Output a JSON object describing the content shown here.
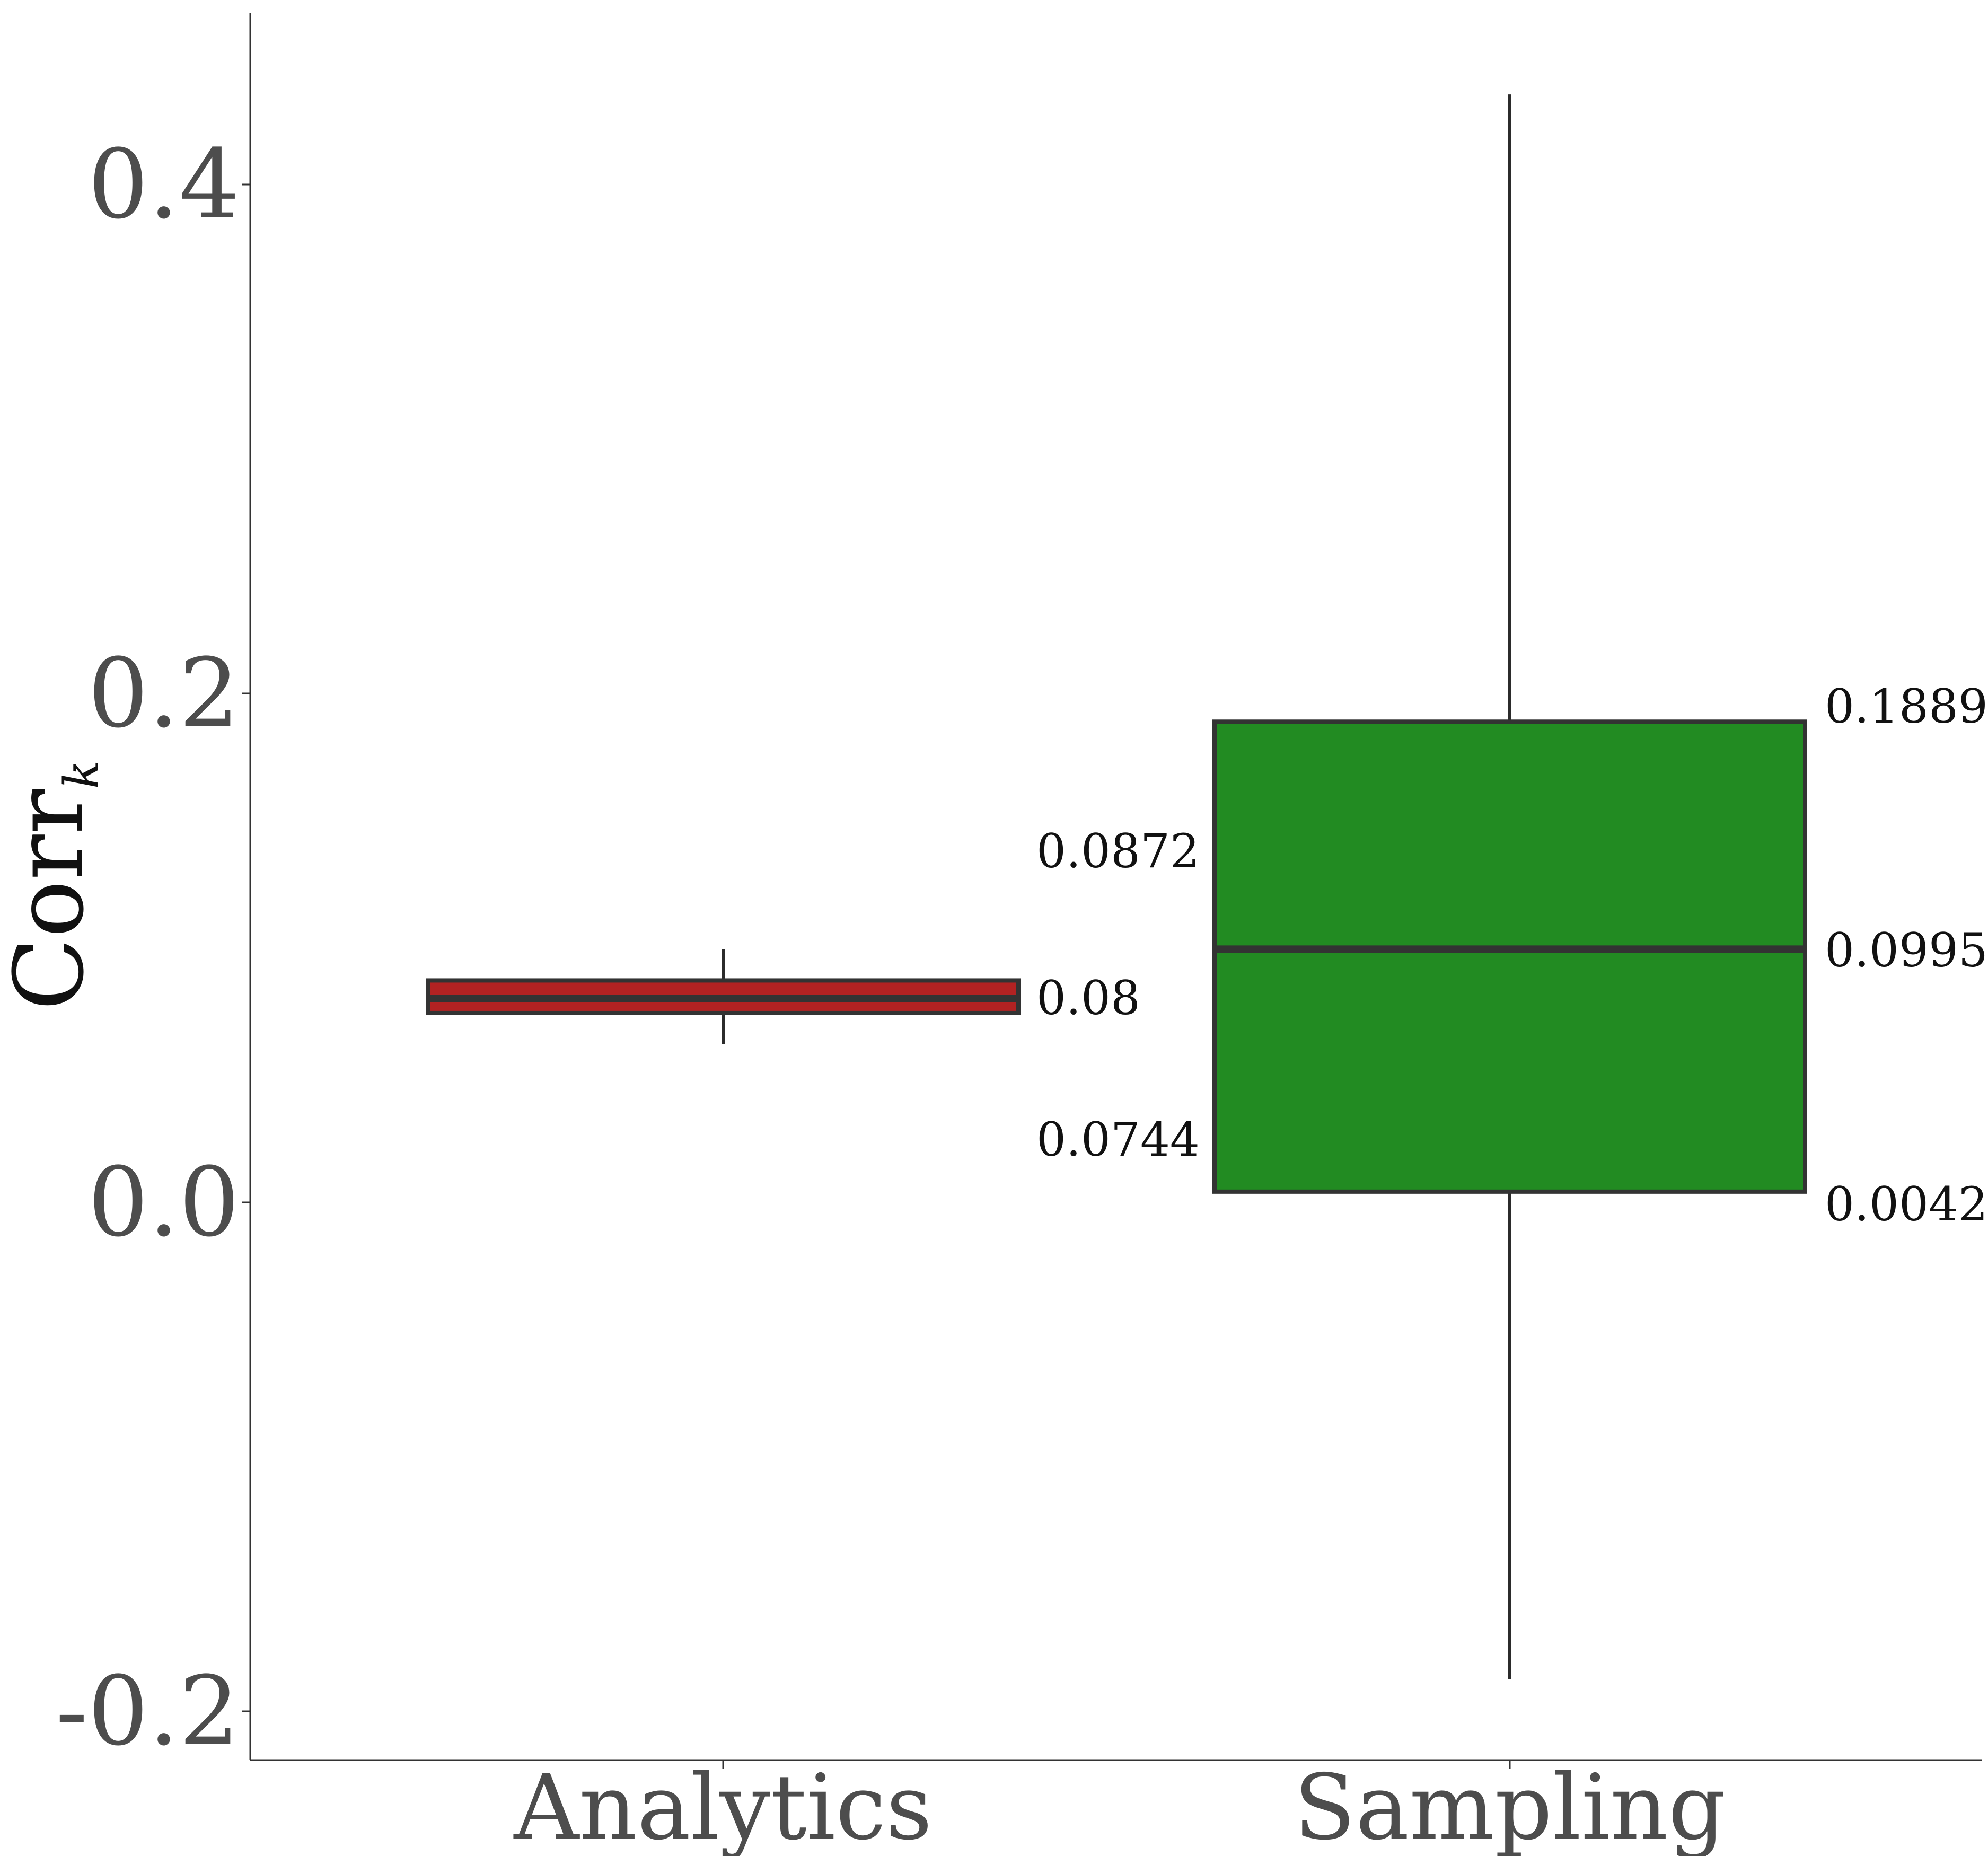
{
  "chart_data": {
    "type": "box",
    "ylabel": "Corr",
    "ylabel_subscript": "k",
    "categories": [
      "Analytics",
      "Sampling"
    ],
    "ylim": [
      -0.22,
      0.47
    ],
    "yticks": [
      -0.2,
      0.0,
      0.2,
      0.4
    ],
    "ytick_labels": [
      "-0.2",
      "0.0",
      "0.2",
      "0.4"
    ],
    "grid": false,
    "boxes": [
      {
        "category": "Analytics",
        "color": "#b22222",
        "whisker_low": 0.0623,
        "q1": 0.0744,
        "median": 0.08,
        "q3": 0.0872,
        "whisker_high": 0.0995,
        "labels": {
          "q3": "0.0872",
          "median": "0.08",
          "q1": "0.0744"
        }
      },
      {
        "category": "Sampling",
        "color": "#228b22",
        "whisker_low": -0.1874,
        "q1": 0.0042,
        "median": 0.0995,
        "q3": 0.1889,
        "whisker_high": 0.4354,
        "labels": {
          "q3": "0.1889",
          "median": "0.0995",
          "q1": "0.0042"
        }
      }
    ]
  }
}
